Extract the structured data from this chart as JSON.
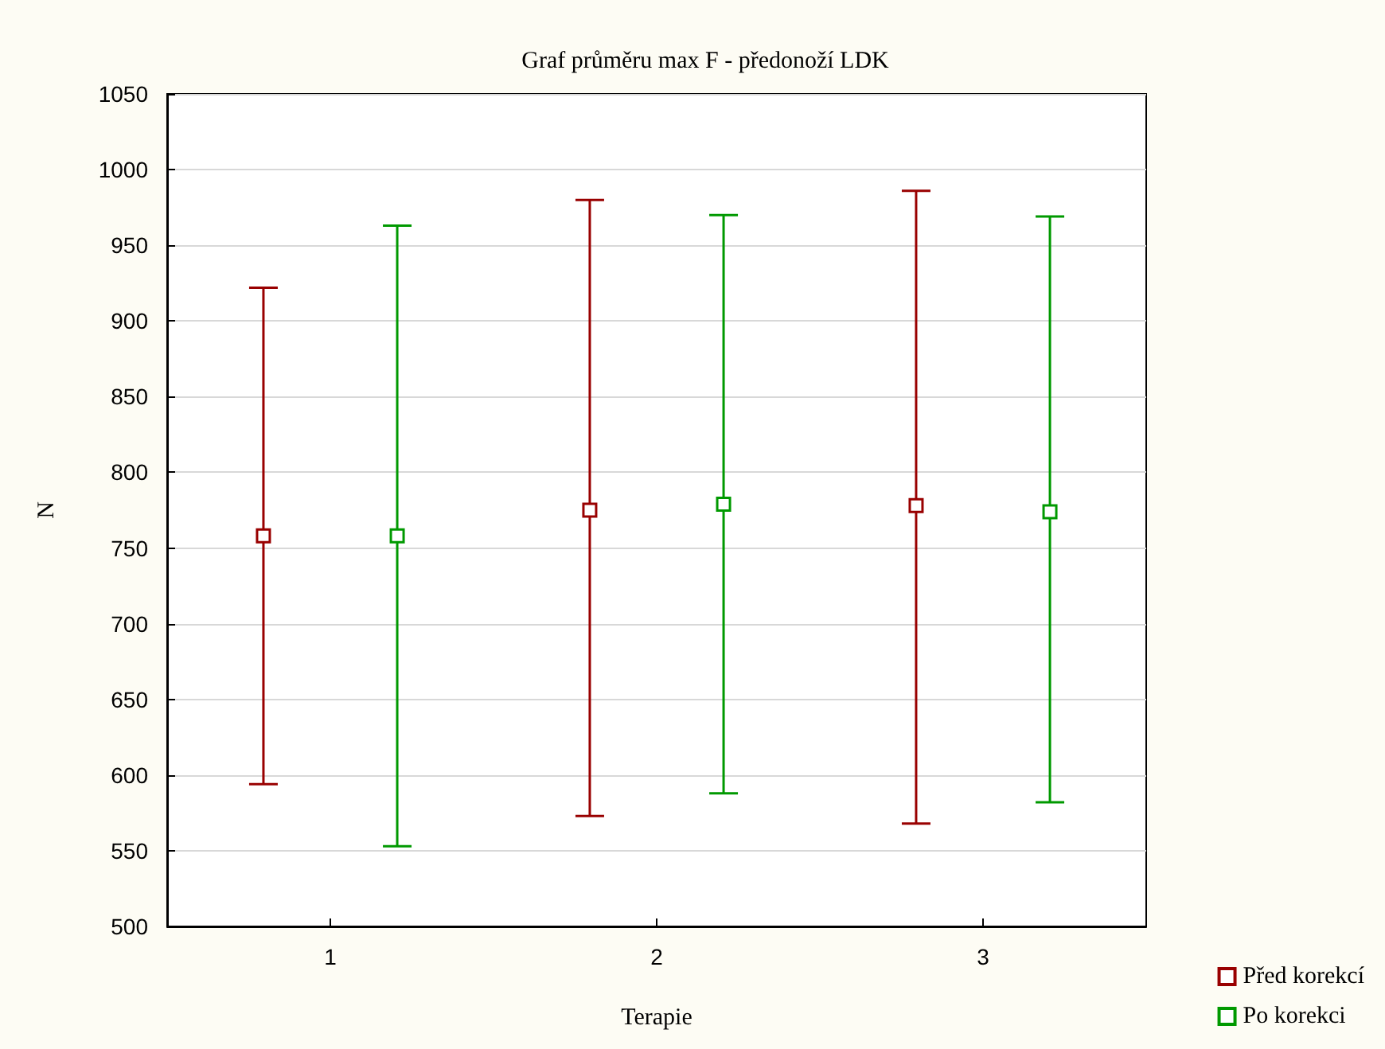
{
  "chart_data": {
    "type": "scatter",
    "title": "Graf průměru max F - předonoží LDK",
    "xlabel": "Terapie",
    "ylabel": "N",
    "categories": [
      "1",
      "2",
      "3"
    ],
    "series": [
      {
        "name": "Před korekcí",
        "color": "#990000",
        "values": [
          758,
          775,
          778
        ],
        "errors": [
          [
            594,
            922
          ],
          [
            573,
            980
          ],
          [
            568,
            986
          ]
        ]
      },
      {
        "name": "Po korekci",
        "color": "#009900",
        "values": [
          758,
          779,
          774
        ],
        "errors": [
          [
            553,
            963
          ],
          [
            588,
            970
          ],
          [
            582,
            969
          ]
        ]
      }
    ],
    "ylim": [
      500,
      1050
    ],
    "yticks": [
      500,
      550,
      600,
      650,
      700,
      750,
      800,
      850,
      900,
      950,
      1000,
      1050
    ],
    "grid": "y",
    "legend": "bottom right",
    "marker": "square"
  }
}
